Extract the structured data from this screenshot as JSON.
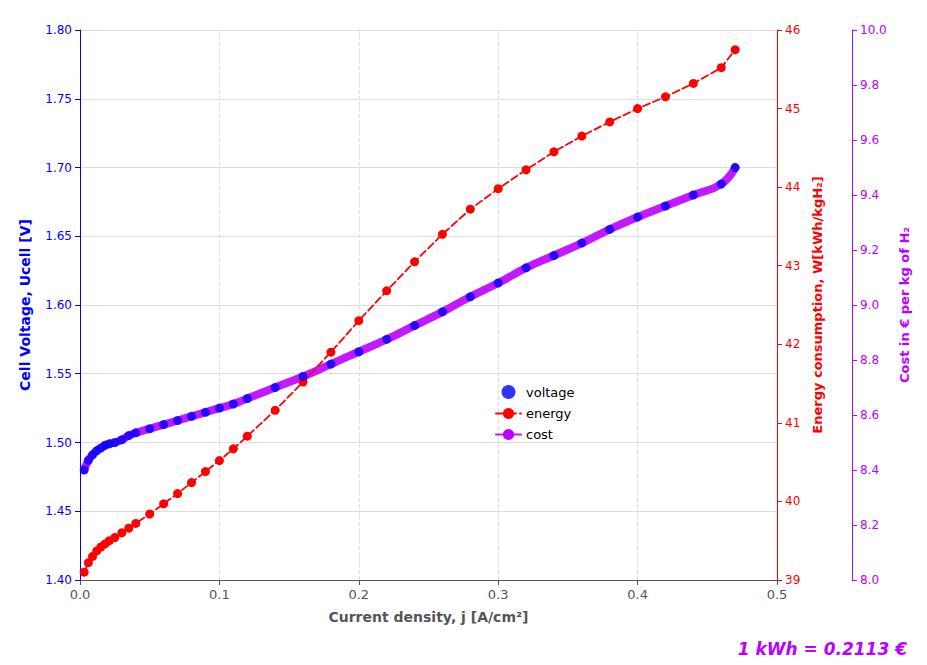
{
  "chart_data": {
    "type": "scatter",
    "xlabel": "Current density, j [A/cm²]",
    "ylabel": "Cell Voltage, Ucell [V]",
    "y2label": "Energy consumption, W[kWh/kgH₂]",
    "y3label": "Cost in € per kg of H₂",
    "annotation": "1 kWh = 0.2113 €",
    "annotation_color": "#bb00ff",
    "xlim": [
      0.0,
      0.5
    ],
    "xticks": [
      {
        "value": 0.0,
        "label": "0.0"
      },
      0.1,
      0.2,
      0.3,
      0.4,
      0.5
    ],
    "ylim": [
      1.4,
      1.8
    ],
    "yticks": [
      {
        "value": 1.4,
        "label": "1.40"
      },
      1.45,
      {
        "value": 1.5,
        "label": "1.50"
      },
      1.55,
      {
        "value": 1.6,
        "label": "1.60"
      },
      1.65,
      {
        "value": 1.7,
        "label": "1.70"
      },
      1.75,
      {
        "value": 1.8,
        "label": "1.80"
      }
    ],
    "y_color": "#0000ff",
    "y2lim": [
      39,
      46
    ],
    "y2ticks": [
      39,
      40,
      41,
      42,
      43,
      44,
      45,
      46
    ],
    "y2_color": "#ff0000",
    "y3lim": [
      8.0,
      10.0
    ],
    "y3ticks": [
      {
        "value": 8.0,
        "label": "8.0"
      },
      8.2,
      8.4,
      8.6,
      8.8,
      {
        "value": 9.0,
        "label": "9.0"
      },
      9.2,
      9.4,
      9.6,
      9.8,
      {
        "value": 10.0,
        "label": "10.0"
      }
    ],
    "y3_color": "#bb00ff",
    "grid": true,
    "legend": "lower right",
    "series": [
      {
        "name": "voltage",
        "type": "scatter",
        "color": "#0000ff",
        "marker": "circle",
        "axis": "y",
        "x": [
          0.003,
          0.006,
          0.009,
          0.012,
          0.015,
          0.018,
          0.021,
          0.025,
          0.03,
          0.035,
          0.04,
          0.05,
          0.06,
          0.07,
          0.08,
          0.09,
          0.1,
          0.11,
          0.12,
          0.14,
          0.16,
          0.18,
          0.2,
          0.22,
          0.24,
          0.26,
          0.28,
          0.3,
          0.32,
          0.34,
          0.36,
          0.38,
          0.4,
          0.42,
          0.44,
          0.46,
          0.47
        ],
        "values": [
          1.48,
          1.487,
          1.491,
          1.494,
          1.496,
          1.498,
          1.499,
          1.5,
          1.502,
          1.505,
          1.507,
          1.51,
          1.513,
          1.516,
          1.519,
          1.522,
          1.525,
          1.528,
          1.532,
          1.54,
          1.548,
          1.557,
          1.566,
          1.575,
          1.585,
          1.595,
          1.606,
          1.616,
          1.627,
          1.636,
          1.645,
          1.655,
          1.664,
          1.672,
          1.68,
          1.688,
          1.7
        ]
      },
      {
        "name": "energy",
        "type": "line",
        "color": "#ff0000",
        "marker": "circle",
        "line_style": "dashed",
        "axis": "y2",
        "x": [
          0.003,
          0.006,
          0.009,
          0.012,
          0.015,
          0.018,
          0.021,
          0.025,
          0.03,
          0.035,
          0.04,
          0.05,
          0.06,
          0.07,
          0.08,
          0.09,
          0.1,
          0.11,
          0.12,
          0.14,
          0.16,
          0.18,
          0.2,
          0.22,
          0.24,
          0.26,
          0.28,
          0.3,
          0.32,
          0.34,
          0.36,
          0.38,
          0.4,
          0.42,
          0.44,
          0.46,
          0.47
        ],
        "values": [
          39.1,
          39.22,
          39.3,
          39.37,
          39.42,
          39.46,
          39.5,
          39.54,
          39.6,
          39.66,
          39.72,
          39.84,
          39.97,
          40.1,
          40.24,
          40.38,
          40.52,
          40.67,
          40.83,
          41.16,
          41.52,
          41.9,
          42.3,
          42.68,
          43.05,
          43.4,
          43.72,
          43.98,
          44.22,
          44.45,
          44.65,
          44.83,
          45.0,
          45.15,
          45.32,
          45.52,
          45.75
        ]
      },
      {
        "name": "cost",
        "type": "line",
        "color": "#bb00ff",
        "marker": "none",
        "line_style": "solid",
        "axis": "y",
        "x": [
          0.003,
          0.006,
          0.009,
          0.012,
          0.015,
          0.018,
          0.021,
          0.025,
          0.03,
          0.035,
          0.04,
          0.05,
          0.06,
          0.07,
          0.08,
          0.09,
          0.1,
          0.11,
          0.12,
          0.14,
          0.16,
          0.18,
          0.2,
          0.22,
          0.24,
          0.26,
          0.28,
          0.3,
          0.32,
          0.34,
          0.36,
          0.38,
          0.4,
          0.42,
          0.44,
          0.46,
          0.47
        ],
        "values": [
          1.48,
          1.487,
          1.491,
          1.494,
          1.496,
          1.498,
          1.499,
          1.5,
          1.502,
          1.505,
          1.507,
          1.51,
          1.513,
          1.516,
          1.519,
          1.522,
          1.525,
          1.528,
          1.532,
          1.54,
          1.548,
          1.557,
          1.566,
          1.575,
          1.585,
          1.595,
          1.606,
          1.616,
          1.627,
          1.636,
          1.645,
          1.655,
          1.664,
          1.672,
          1.68,
          1.688,
          1.7
        ]
      }
    ]
  }
}
